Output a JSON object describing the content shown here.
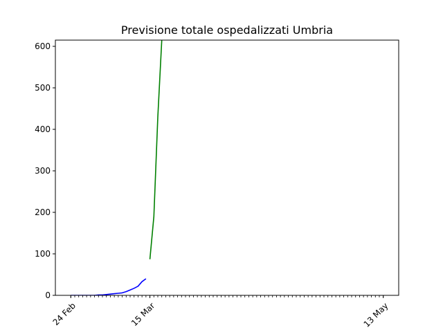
{
  "chart_data": {
    "type": "line",
    "title": "Previsione totale ospedalizzati Umbria",
    "xlabel": "",
    "ylabel": "",
    "x_axis": {
      "start": "2020-02-24",
      "end": "2020-05-13",
      "labeled_ticks": [
        {
          "date": "2020-02-24",
          "label": "24 Feb"
        },
        {
          "date": "2020-03-15",
          "label": "15 Mar"
        },
        {
          "date": "2020-05-13",
          "label": "13 May"
        }
      ],
      "minor_ticks": "daily"
    },
    "ylim": [
      0,
      615
    ],
    "yticks": [
      0,
      100,
      200,
      300,
      400,
      500,
      600
    ],
    "grid": false,
    "legend": "none",
    "series": [
      {
        "color": "#0000ff",
        "points": [
          {
            "x": "2020-02-24",
            "y": 0
          },
          {
            "x": "2020-02-25",
            "y": 0
          },
          {
            "x": "2020-02-26",
            "y": 0
          },
          {
            "x": "2020-02-27",
            "y": 0
          },
          {
            "x": "2020-02-28",
            "y": 0
          },
          {
            "x": "2020-02-29",
            "y": 0
          },
          {
            "x": "2020-03-01",
            "y": 0
          },
          {
            "x": "2020-03-02",
            "y": 1
          },
          {
            "x": "2020-03-03",
            "y": 1
          },
          {
            "x": "2020-03-04",
            "y": 2
          },
          {
            "x": "2020-03-05",
            "y": 3
          },
          {
            "x": "2020-03-06",
            "y": 4
          },
          {
            "x": "2020-03-07",
            "y": 5
          },
          {
            "x": "2020-03-08",
            "y": 6
          },
          {
            "x": "2020-03-09",
            "y": 9
          },
          {
            "x": "2020-03-10",
            "y": 13
          },
          {
            "x": "2020-03-11",
            "y": 17
          },
          {
            "x": "2020-03-12",
            "y": 22
          },
          {
            "x": "2020-03-13",
            "y": 33
          },
          {
            "x": "2020-03-14",
            "y": 40
          }
        ]
      },
      {
        "color": "#008000",
        "points": [
          {
            "x": "2020-03-15",
            "y": 87
          },
          {
            "x": "2020-03-16",
            "y": 190
          },
          {
            "x": "2020-03-17",
            "y": 430
          },
          {
            "x": "2020-03-18",
            "y": 615
          }
        ]
      }
    ]
  }
}
